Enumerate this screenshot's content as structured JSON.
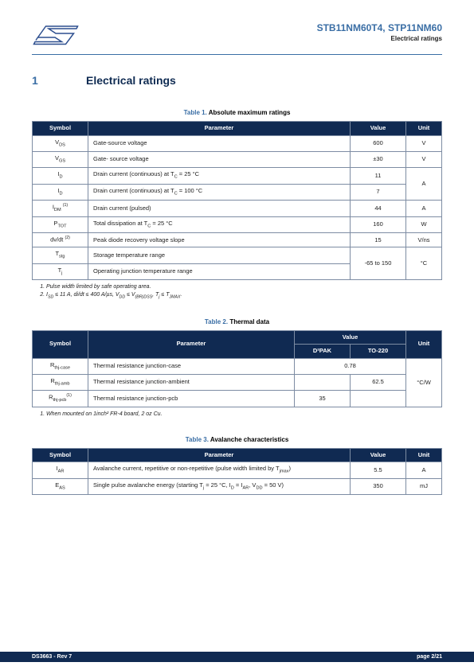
{
  "header": {
    "part_numbers": "STB11NM60T4, STP11NM60",
    "subtitle": "Electrical ratings"
  },
  "section": {
    "number": "1",
    "title": "Electrical ratings"
  },
  "table1": {
    "caption_label": "Table 1. ",
    "caption_title": "Absolute maximum ratings",
    "columns": [
      "Symbol",
      "Parameter",
      "Value",
      "Unit"
    ],
    "rows": [
      {
        "sym": "V<sub>DS</sub>",
        "param": "Gate-source voltage",
        "val": "600",
        "unit": "V"
      },
      {
        "sym": "V<sub>GS</sub>",
        "param": "Gate- source voltage",
        "val": "±30",
        "unit": "V"
      },
      {
        "sym": "I<sub>D</sub>",
        "param": "Drain current (continuous) at T<sub>C</sub> = 25 °C",
        "val": "11",
        "unit": "A",
        "unit_rowspan": 2
      },
      {
        "sym": "I<sub>D</sub>",
        "param": "Drain current (continuous) at T<sub>C</sub> = 100 °C",
        "val": "7"
      },
      {
        "sym": "I<sub>DM</sub> <sup>(1)</sup>",
        "param": "Drain current (pulsed)",
        "val": "44",
        "unit": "A"
      },
      {
        "sym": "P<sub>TOT</sub>",
        "param": "Total dissipation at T<sub>C</sub> = 25 °C",
        "val": "160",
        "unit": "W"
      },
      {
        "sym": "dv/dt <sup>(2)</sup>",
        "param": "Peak diode recovery voltage slope",
        "val": "15",
        "unit": "V/ns"
      },
      {
        "sym": "T<sub>stg</sub>",
        "param": "Storage temperature range",
        "val": "-65 to 150",
        "val_rowspan": 2,
        "unit": "°C",
        "unit_rowspan": 2
      },
      {
        "sym": "T<sub>j</sub>",
        "param": "Operating junction temperature range"
      }
    ],
    "footnotes": [
      "Pulse width limited by safe operating area.",
      "I<sub>SD</sub> ≤ 11 A, di/dt ≤ 400 A/µs, V<sub>DD</sub> ≤ V<sub>(BR)DSS</sub>, T<sub>j</sub> ≤ T<sub>JMAX</sub>."
    ]
  },
  "table2": {
    "caption_label": "Table 2. ",
    "caption_title": "Thermal data",
    "header_row1": [
      "Symbol",
      "Parameter",
      "Value",
      "Unit"
    ],
    "header_row2": [
      "D²PAK",
      "TO-220"
    ],
    "rows": [
      {
        "sym": "R<sub>thj-case</sub>",
        "param": "Thermal resistance junction-case",
        "v1": "0.78",
        "v1_colspan": 2,
        "unit": "°C/W",
        "unit_rowspan": 3
      },
      {
        "sym": "R<sub>thj-amb</sub>",
        "param": "Thermal resistance junction-ambient",
        "v1": "",
        "v2": "62.5"
      },
      {
        "sym": "R<sub>thj-pcb</sub><sup>(1)</sup>",
        "param": "Thermal resistance junction-pcb",
        "v1": "35",
        "v2": ""
      }
    ],
    "footnotes": [
      "When mounted on 1inch² FR-4 board, 2 oz Cu."
    ]
  },
  "table3": {
    "caption_label": "Table 3. ",
    "caption_title": "Avalanche characteristics",
    "columns": [
      "Symbol",
      "Parameter",
      "Value",
      "Unit"
    ],
    "rows": [
      {
        "sym": "I<sub>AR</sub>",
        "param": "Avalanche current, repetitive or non-repetitive (pulse width limited by T<sub>jmax</sub>)",
        "val": "5.5",
        "unit": "A"
      },
      {
        "sym": "E<sub>AS</sub>",
        "param": "Single pulse avalanche energy (starting T<sub>j</sub> = 25 °C, I<sub>D</sub> = I<sub>AR</sub>, V<sub>DD</sub> = 50 V)",
        "val": "350",
        "unit": "mJ"
      }
    ]
  },
  "footer": {
    "left": "DS3663 - Rev 7",
    "right": "page 2/21"
  }
}
